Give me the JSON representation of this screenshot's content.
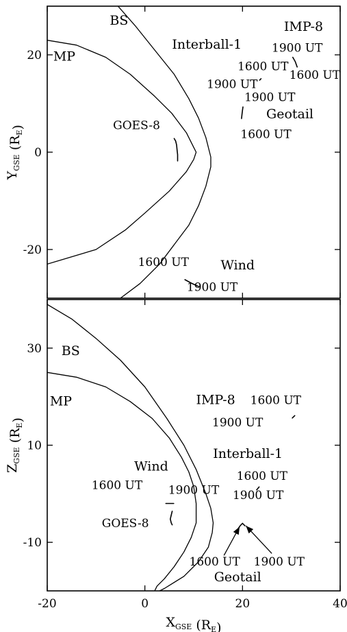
{
  "chart_data": [
    {
      "type": "line",
      "panel": "top",
      "xlim": [
        -20,
        40
      ],
      "ylim": [
        -30,
        30
      ],
      "xticks": [
        -20,
        0,
        20,
        40
      ],
      "yticks": [
        20,
        0,
        -20
      ],
      "ytick_labels": [
        "20",
        "0",
        "-20"
      ],
      "ylabel": {
        "main": "Y",
        "sub": "GSE",
        "paren_open": " (R",
        "unit_sub": "E",
        "paren_close": ")"
      },
      "curves": [
        {
          "name": "BS",
          "points": [
            [
              -5.5,
              30
            ],
            [
              -2,
              26
            ],
            [
              2,
              21
            ],
            [
              6,
              16
            ],
            [
              9,
              11
            ],
            [
              11,
              7
            ],
            [
              12.5,
              3
            ],
            [
              13.5,
              -1
            ],
            [
              13.5,
              -3
            ],
            [
              12.5,
              -7
            ],
            [
              11,
              -11
            ],
            [
              9,
              -15
            ],
            [
              6,
              -19
            ],
            [
              3,
              -23
            ],
            [
              -1,
              -27
            ],
            [
              -5,
              -30
            ]
          ]
        },
        {
          "name": "MP",
          "points": [
            [
              -20,
              23
            ],
            [
              -14,
              22
            ],
            [
              -8,
              19.5
            ],
            [
              -3,
              16
            ],
            [
              2,
              11.5
            ],
            [
              5.5,
              8
            ],
            [
              8.5,
              4
            ],
            [
              10,
              1
            ],
            [
              10.5,
              0
            ],
            [
              10,
              -1.5
            ],
            [
              8.5,
              -4
            ],
            [
              5,
              -8
            ],
            [
              0,
              -12.5
            ],
            [
              -4,
              -16
            ],
            [
              -10,
              -20
            ],
            [
              -20,
              -23
            ]
          ]
        }
      ],
      "tracks": [
        {
          "name": "GOES-8",
          "points": [
            [
              6,
              2.8
            ],
            [
              6.3,
              2.3
            ],
            [
              6.5,
              1.5
            ],
            [
              6.6,
              0.5
            ],
            [
              6.7,
              -0.5
            ],
            [
              6.7,
              -1.8
            ]
          ]
        },
        {
          "name": "Interball-1",
          "points": [
            [
              23.5,
              14.8
            ],
            [
              23.8,
              15.1
            ]
          ]
        },
        {
          "name": "IMP-8",
          "points": [
            [
              30.3,
              19.5
            ],
            [
              30.8,
              18.6
            ],
            [
              31.2,
              17.5
            ]
          ]
        },
        {
          "name": "Geotail",
          "points": [
            [
              20.1,
              9.3
            ],
            [
              20.0,
              8.6
            ],
            [
              19.9,
              7.8
            ],
            [
              19.8,
              6.9
            ]
          ]
        },
        {
          "name": "Wind",
          "points": [
            [
              8.2,
              -26.2
            ],
            [
              9.5,
              -26.9
            ],
            [
              11,
              -27.6
            ]
          ]
        }
      ],
      "annotations": [
        {
          "text": "BS",
          "x": -5.3,
          "y": 26.2,
          "cls": "big-label"
        },
        {
          "text": "MP",
          "x": -16.5,
          "y": 18.8,
          "cls": "big-label"
        },
        {
          "text": "Interball-1",
          "x": 12.7,
          "y": 21.3,
          "cls": "big-label"
        },
        {
          "text": "IMP-8",
          "x": 32.5,
          "y": 24.9,
          "cls": "big-label"
        },
        {
          "text": "1900 UT",
          "x": 31.2,
          "y": 20.6,
          "cls": "label"
        },
        {
          "text": "1600 UT",
          "x": 34.8,
          "y": 15.1,
          "cls": "label"
        },
        {
          "text": "1600 UT",
          "x": 24.2,
          "y": 16.8,
          "cls": "label"
        },
        {
          "text": "1900 UT",
          "x": 17.9,
          "y": 13.2,
          "cls": "label"
        },
        {
          "text": "1900 UT",
          "x": 25.6,
          "y": 10.5,
          "cls": "label"
        },
        {
          "text": "Geotail",
          "x": 29.7,
          "y": 7.0,
          "cls": "big-label"
        },
        {
          "text": "1600 UT",
          "x": 24.8,
          "y": 2.9,
          "cls": "label"
        },
        {
          "text": "GOES-8",
          "x": -1.7,
          "y": 4.7,
          "cls": "label"
        },
        {
          "text": "1600 UT",
          "x": 3.8,
          "y": -23.4,
          "cls": "label"
        },
        {
          "text": "Wind",
          "x": 19.0,
          "y": -24.1,
          "cls": "big-label"
        },
        {
          "text": "1900 UT",
          "x": 13.8,
          "y": -28.5,
          "cls": "label"
        }
      ]
    },
    {
      "type": "line",
      "panel": "bottom",
      "xlim": [
        -20,
        40
      ],
      "ylim": [
        -20,
        40
      ],
      "xticks": [
        -20,
        0,
        20,
        40
      ],
      "xtick_labels": [
        "-20",
        "0",
        "20",
        "40"
      ],
      "yticks": [
        30,
        10,
        -10
      ],
      "ytick_labels": [
        "30",
        "10",
        "-10"
      ],
      "xlabel": {
        "main": "X",
        "sub": "GSE",
        "paren_open": " (R",
        "unit_sub": "E",
        "paren_close": ")"
      },
      "ylabel": {
        "main": "Z",
        "sub": "GSE",
        "paren_open": " (R",
        "unit_sub": "E",
        "paren_close": ")"
      },
      "curves": [
        {
          "name": "BS",
          "points": [
            [
              -20,
              39
            ],
            [
              -15,
              36
            ],
            [
              -10,
              32
            ],
            [
              -5,
              27.5
            ],
            [
              0,
              22
            ],
            [
              4.5,
              15.5
            ],
            [
              8,
              10
            ],
            [
              10.5,
              5
            ],
            [
              12.5,
              0
            ],
            [
              13.5,
              -3
            ],
            [
              14,
              -6
            ],
            [
              13.8,
              -8
            ],
            [
              13,
              -11
            ],
            [
              11,
              -14
            ],
            [
              8,
              -17
            ],
            [
              4,
              -19.5
            ],
            [
              -3,
              -23
            ],
            [
              -10,
              -27
            ]
          ]
        },
        {
          "name": "MP",
          "points": [
            [
              -20,
              25
            ],
            [
              -14,
              24
            ],
            [
              -8,
              22
            ],
            [
              -3,
              19
            ],
            [
              1.5,
              15.5
            ],
            [
              5,
              11.5
            ],
            [
              7.5,
              7.5
            ],
            [
              9,
              4.5
            ],
            [
              10,
              1.5
            ],
            [
              10.5,
              -2
            ],
            [
              10.5,
              -6
            ],
            [
              9.5,
              -9
            ],
            [
              8,
              -12
            ],
            [
              6,
              -15
            ],
            [
              4,
              -17.5
            ],
            [
              2.5,
              -19
            ],
            [
              1.5,
              -21
            ],
            [
              0,
              -23
            ],
            [
              -1.5,
              -25
            ],
            [
              -3,
              -27
            ]
          ]
        }
      ],
      "tracks": [
        {
          "name": "IMP-8",
          "points": [
            [
              30.2,
              15.6
            ],
            [
              30.7,
              16.1
            ]
          ]
        },
        {
          "name": "Interball-1",
          "points": [
            [
              22.9,
              0.8
            ],
            [
              23.4,
              1.4
            ]
          ]
        },
        {
          "name": "Wind",
          "points": [
            [
              4.3,
              -2
            ],
            [
              5.9,
              -2
            ]
          ]
        },
        {
          "name": "GOES-8",
          "points": [
            [
              5.6,
              -3.6
            ],
            [
              5.4,
              -4.4
            ],
            [
              5.2,
              -5.2
            ],
            [
              5.4,
              -6
            ],
            [
              5.6,
              -6.4
            ]
          ]
        },
        {
          "name": "Geotail",
          "points": [
            [
              19.1,
              -7.2
            ],
            [
              19.5,
              -6.6
            ],
            [
              20.0,
              -6.1
            ],
            [
              20.5,
              -6.6
            ]
          ]
        }
      ],
      "arrows": [
        {
          "from": [
            16.2,
            -12.7
          ],
          "to": [
            19.4,
            -6.8
          ]
        },
        {
          "from": [
            26.0,
            -12.3
          ],
          "to": [
            20.7,
            -6.6
          ]
        }
      ],
      "annotations": [
        {
          "text": "BS",
          "x": -15.2,
          "y": 28.6,
          "cls": "big-label"
        },
        {
          "text": "MP",
          "x": -17.2,
          "y": 18.2,
          "cls": "big-label"
        },
        {
          "text": "IMP-8",
          "x": 14.5,
          "y": 18.5,
          "cls": "big-label"
        },
        {
          "text": "1600 UT",
          "x": 26.8,
          "y": 18.5,
          "cls": "label"
        },
        {
          "text": "1900 UT",
          "x": 19.0,
          "y": 13.9,
          "cls": "label"
        },
        {
          "text": "Interball-1",
          "x": 21.1,
          "y": 7.4,
          "cls": "big-label"
        },
        {
          "text": "Wind",
          "x": 1.3,
          "y": 4.8,
          "cls": "big-label"
        },
        {
          "text": "1600 UT",
          "x": 24.0,
          "y": 2.9,
          "cls": "label"
        },
        {
          "text": "1600 UT",
          "x": -5.7,
          "y": 1.0,
          "cls": "label"
        },
        {
          "text": "1900 UT",
          "x": 10.0,
          "y": 0.0,
          "cls": "label"
        },
        {
          "text": "1900 UT",
          "x": 23.2,
          "y": -1.1,
          "cls": "label"
        },
        {
          "text": "GOES-8",
          "x": -4.0,
          "y": -6.9,
          "cls": "label"
        },
        {
          "text": "1600 UT",
          "x": 14.3,
          "y": -14.8,
          "cls": "label"
        },
        {
          "text": "1900 UT",
          "x": 27.5,
          "y": -14.8,
          "cls": "label"
        },
        {
          "text": "Geotail",
          "x": 19.0,
          "y": -18.0,
          "cls": "big-label"
        }
      ]
    }
  ]
}
